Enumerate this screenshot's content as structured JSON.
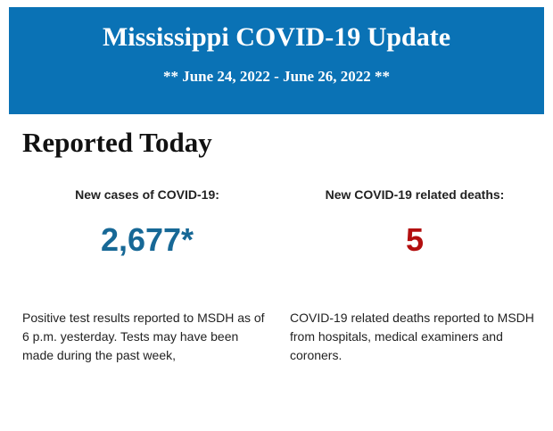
{
  "header": {
    "title": "Mississippi COVID-19 Update",
    "subtitle": "** June 24, 2022 - June 26, 2022 **"
  },
  "section": {
    "title": "Reported Today",
    "stats": [
      {
        "label": "New cases of COVID-19:",
        "value": "2,677*",
        "description": "Positive test results reported to MSDH as of 6 p.m. yesterday. Tests may have been made during the past week,"
      },
      {
        "label": "New COVID-19 related deaths:",
        "value": "5",
        "description": "COVID-19 related deaths reported to MSDH from hospitals, medical examiners and coroners."
      }
    ]
  }
}
